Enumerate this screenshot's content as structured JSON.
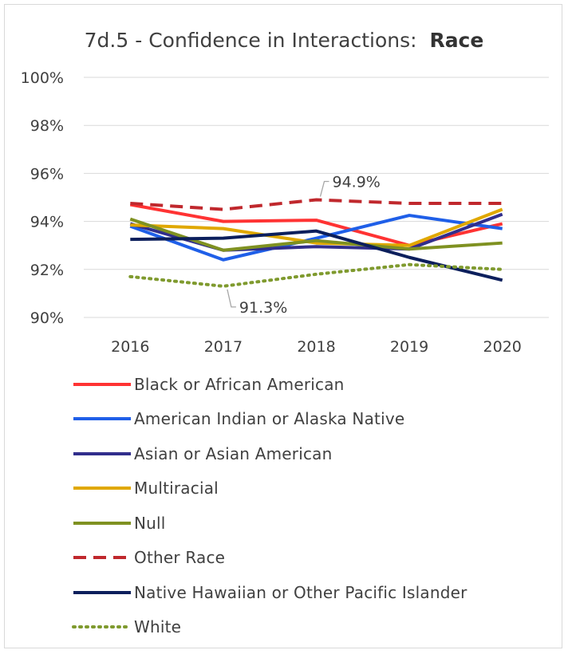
{
  "chart_data": {
    "type": "line",
    "title_prefix": "7d.5 - Confidence in Interactions:",
    "title_bold": "Race",
    "categories": [
      "2016",
      "2017",
      "2018",
      "2019",
      "2020"
    ],
    "ylim": [
      90,
      100
    ],
    "yticks": [
      "100%",
      "98%",
      "96%",
      "94%",
      "92%",
      "90%"
    ],
    "ytick_values": [
      100,
      98,
      96,
      94,
      92,
      90
    ],
    "grid": true,
    "legend_position": "bottom",
    "series": [
      {
        "name": "Black or African American",
        "color": "#ff3333",
        "style": "solid",
        "values": [
          94.7,
          94.0,
          94.05,
          93.0,
          93.9
        ]
      },
      {
        "name": "American Indian or Alaska Native",
        "color": "#1f5fe8",
        "style": "solid",
        "values": [
          93.8,
          92.4,
          93.3,
          94.25,
          93.7
        ]
      },
      {
        "name": "Asian or Asian American",
        "color": "#312e8c",
        "style": "solid",
        "values": [
          93.9,
          92.8,
          92.95,
          92.85,
          94.3
        ]
      },
      {
        "name": "Multiracial",
        "color": "#e0a800",
        "style": "solid",
        "values": [
          93.85,
          93.7,
          93.1,
          93.0,
          94.5
        ]
      },
      {
        "name": "Null",
        "color": "#7f9121",
        "style": "solid",
        "values": [
          94.1,
          92.8,
          93.2,
          92.85,
          93.1
        ]
      },
      {
        "name": "Other Race",
        "color": "#c0282d",
        "style": "dashed",
        "values": [
          94.75,
          94.5,
          94.9,
          94.75,
          94.75
        ]
      },
      {
        "name": "Native Hawaiian or Other Pacific Islander",
        "color": "#0c1f5c",
        "style": "solid",
        "values": [
          93.25,
          93.3,
          93.6,
          92.5,
          91.55
        ]
      },
      {
        "name": "White",
        "color": "#7f9a2e",
        "style": "dotted",
        "values": [
          91.7,
          91.3,
          91.8,
          92.2,
          92.0
        ]
      }
    ],
    "annotations": [
      {
        "text": "94.9%",
        "series": "Other Race",
        "category": "2018",
        "value": 94.9,
        "side": "above"
      },
      {
        "text": "91.3%",
        "series": "White",
        "category": "2017",
        "value": 91.3,
        "side": "below"
      }
    ]
  }
}
